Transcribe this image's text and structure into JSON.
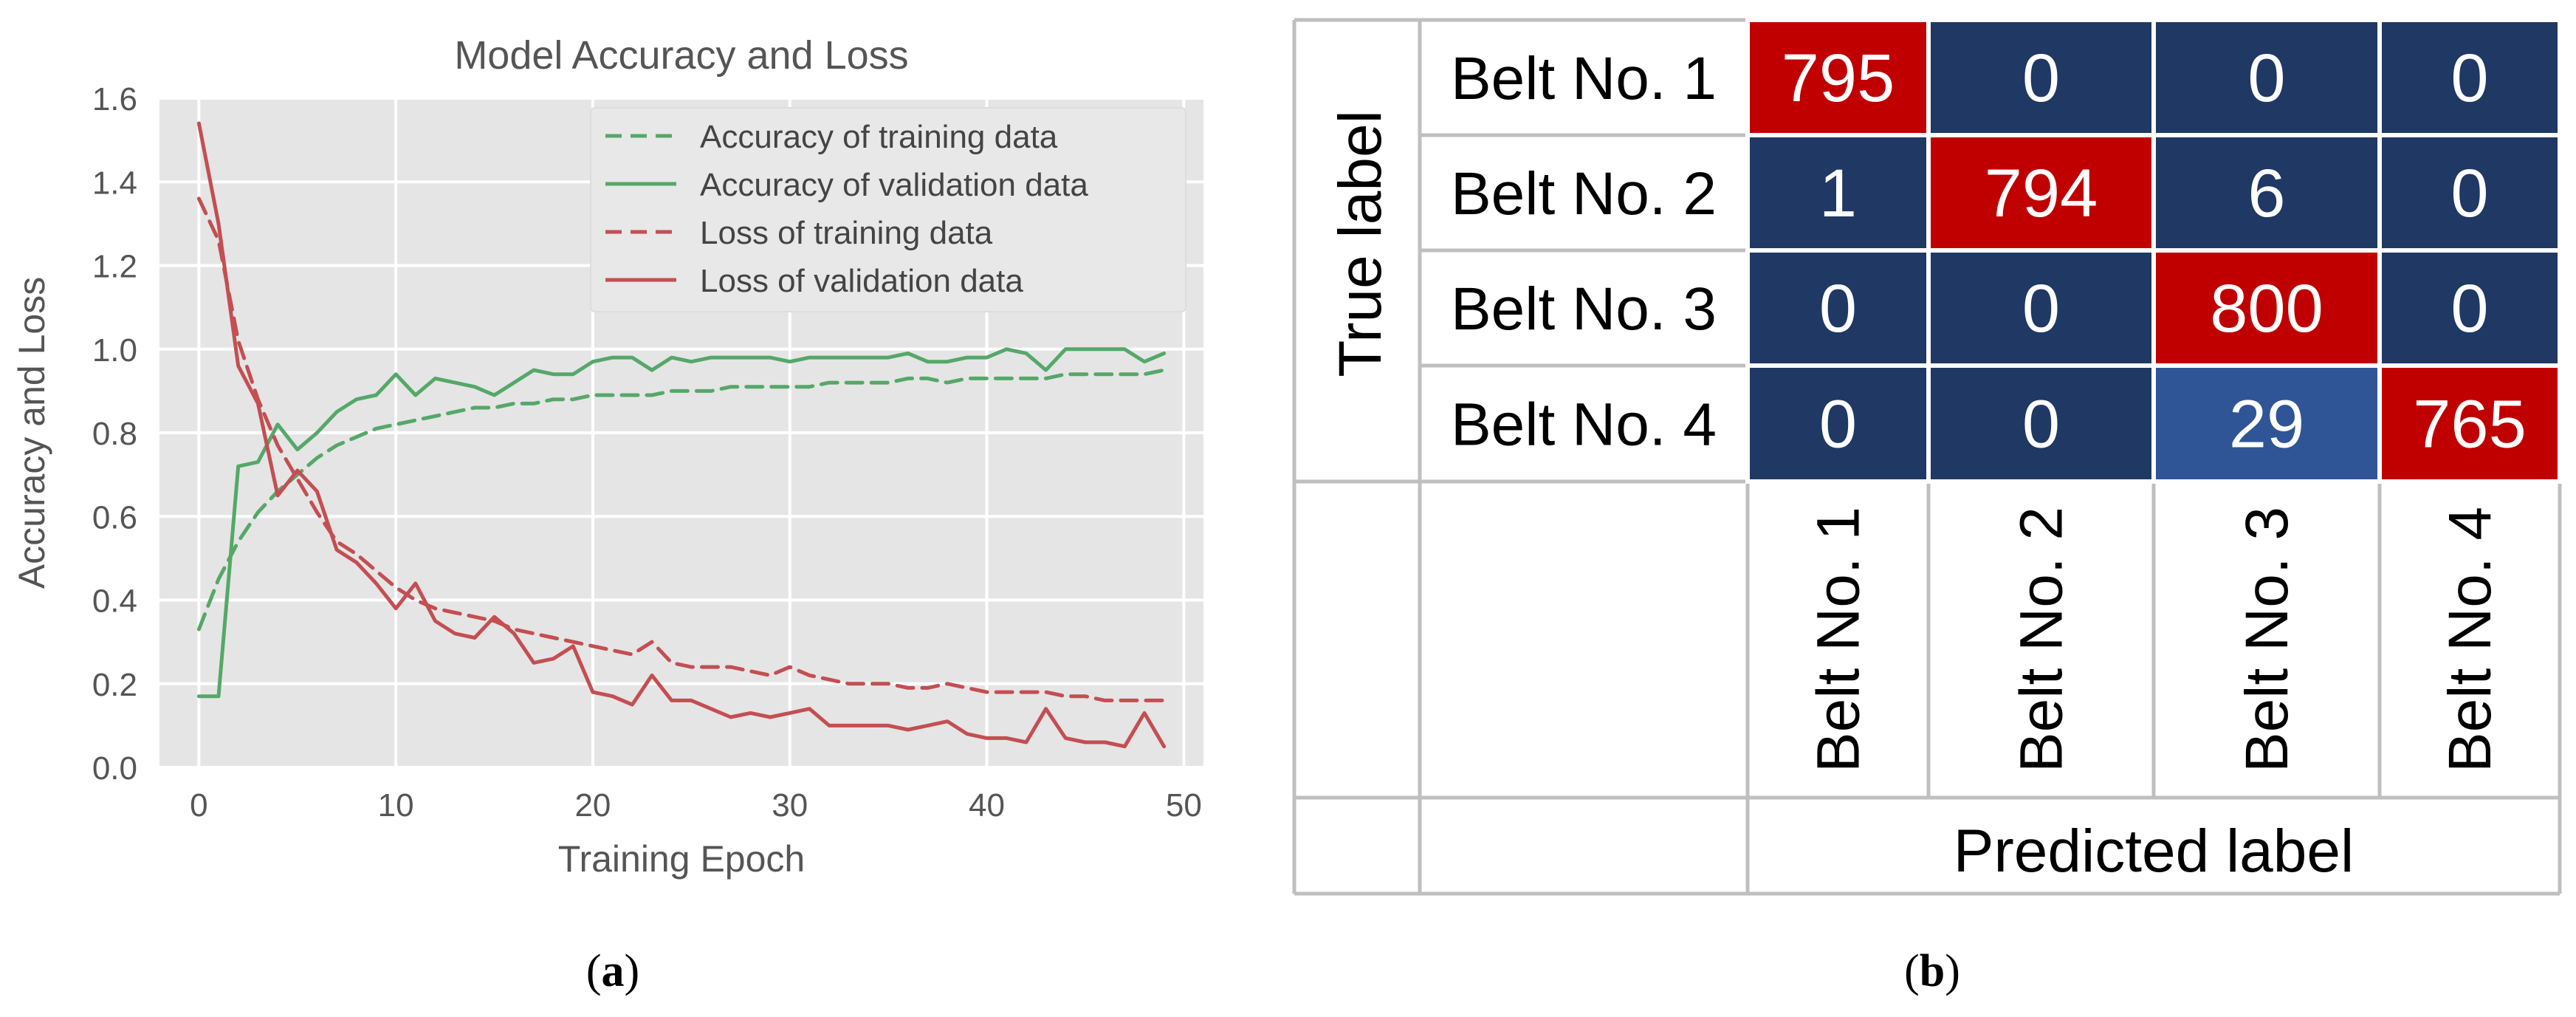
{
  "panel_labels": {
    "a": "a",
    "b": "b"
  },
  "colors": {
    "plot_bg": "#e5e5e5",
    "grid": "#ffffff",
    "green": "#55a868",
    "red": "#c44e52",
    "text": "#555555",
    "cm_dark": "#1f3864",
    "cm_mid": "#2f5597",
    "cm_red": "#c00000",
    "cm_border": "#bfbfbf"
  },
  "chart_data": [
    {
      "type": "line",
      "title": "Model Accuracy and Loss",
      "xlabel": "Training Epoch",
      "ylabel": "Accuracy and Loss",
      "xlim": [
        -2,
        51
      ],
      "ylim": [
        0,
        1.6
      ],
      "xticks": [
        0,
        10,
        20,
        30,
        40,
        50
      ],
      "yticks": [
        0.0,
        0.2,
        0.4,
        0.6,
        0.8,
        1.0,
        1.2,
        1.4,
        1.6
      ],
      "xtick_labels": [
        "0",
        "10",
        "20",
        "30",
        "40",
        "50"
      ],
      "ytick_labels": [
        "0.0",
        "0.2",
        "0.4",
        "0.6",
        "0.8",
        "1.0",
        "1.2",
        "1.4",
        "1.6"
      ],
      "grid": true,
      "legend_position": "top-right",
      "x": [
        0,
        1,
        2,
        3,
        4,
        5,
        6,
        7,
        8,
        9,
        10,
        11,
        12,
        13,
        14,
        15,
        16,
        17,
        18,
        19,
        20,
        21,
        22,
        23,
        24,
        25,
        26,
        27,
        28,
        29,
        30,
        31,
        32,
        33,
        34,
        35,
        36,
        37,
        38,
        39,
        40,
        41,
        42,
        43,
        44,
        45,
        46,
        47,
        48,
        49
      ],
      "series": [
        {
          "name": "Accuracy of training data",
          "color": "green",
          "dash": true,
          "values": [
            0.33,
            0.45,
            0.54,
            0.61,
            0.66,
            0.7,
            0.74,
            0.77,
            0.79,
            0.81,
            0.82,
            0.83,
            0.84,
            0.85,
            0.86,
            0.86,
            0.87,
            0.87,
            0.88,
            0.88,
            0.89,
            0.89,
            0.89,
            0.89,
            0.9,
            0.9,
            0.9,
            0.91,
            0.91,
            0.91,
            0.91,
            0.91,
            0.92,
            0.92,
            0.92,
            0.92,
            0.93,
            0.93,
            0.92,
            0.93,
            0.93,
            0.93,
            0.93,
            0.93,
            0.94,
            0.94,
            0.94,
            0.94,
            0.94,
            0.95
          ]
        },
        {
          "name": "Accuracy of validation data",
          "color": "green",
          "dash": false,
          "values": [
            0.17,
            0.17,
            0.72,
            0.73,
            0.82,
            0.76,
            0.8,
            0.85,
            0.88,
            0.89,
            0.94,
            0.89,
            0.93,
            0.92,
            0.91,
            0.89,
            0.92,
            0.95,
            0.94,
            0.94,
            0.97,
            0.98,
            0.98,
            0.95,
            0.98,
            0.97,
            0.98,
            0.98,
            0.98,
            0.98,
            0.97,
            0.98,
            0.98,
            0.98,
            0.98,
            0.98,
            0.99,
            0.97,
            0.97,
            0.98,
            0.98,
            1.0,
            0.99,
            0.95,
            1.0,
            1.0,
            1.0,
            1.0,
            0.97,
            0.99
          ]
        },
        {
          "name": "Loss of training data",
          "color": "red",
          "dash": true,
          "values": [
            1.36,
            1.26,
            1.02,
            0.88,
            0.77,
            0.69,
            0.61,
            0.54,
            0.51,
            0.47,
            0.43,
            0.4,
            0.38,
            0.37,
            0.36,
            0.35,
            0.33,
            0.32,
            0.31,
            0.3,
            0.29,
            0.28,
            0.27,
            0.3,
            0.25,
            0.24,
            0.24,
            0.24,
            0.23,
            0.22,
            0.24,
            0.22,
            0.21,
            0.2,
            0.2,
            0.2,
            0.19,
            0.19,
            0.2,
            0.19,
            0.18,
            0.18,
            0.18,
            0.18,
            0.17,
            0.17,
            0.16,
            0.16,
            0.16,
            0.16
          ]
        },
        {
          "name": "Loss of validation data",
          "color": "red",
          "dash": false,
          "values": [
            1.54,
            1.3,
            0.96,
            0.87,
            0.65,
            0.71,
            0.66,
            0.52,
            0.49,
            0.44,
            0.38,
            0.44,
            0.35,
            0.32,
            0.31,
            0.36,
            0.32,
            0.25,
            0.26,
            0.29,
            0.18,
            0.17,
            0.15,
            0.22,
            0.16,
            0.16,
            0.14,
            0.12,
            0.13,
            0.12,
            0.13,
            0.14,
            0.1,
            0.1,
            0.1,
            0.1,
            0.09,
            0.1,
            0.11,
            0.08,
            0.07,
            0.07,
            0.06,
            0.14,
            0.07,
            0.06,
            0.06,
            0.05,
            0.13,
            0.05
          ]
        }
      ]
    },
    {
      "type": "heatmap",
      "title": "",
      "ylabel": "True label",
      "xlabel": "Predicted label",
      "row_labels": [
        "Belt No. 1",
        "Belt No. 2",
        "Belt No. 3",
        "Belt No. 4"
      ],
      "col_labels": [
        "Belt No. 1",
        "Belt No. 2",
        "Belt No. 3",
        "Belt No. 4"
      ],
      "matrix": [
        [
          795,
          0,
          0,
          0
        ],
        [
          1,
          794,
          6,
          0
        ],
        [
          0,
          0,
          800,
          0
        ],
        [
          0,
          0,
          29,
          765
        ]
      ]
    }
  ]
}
